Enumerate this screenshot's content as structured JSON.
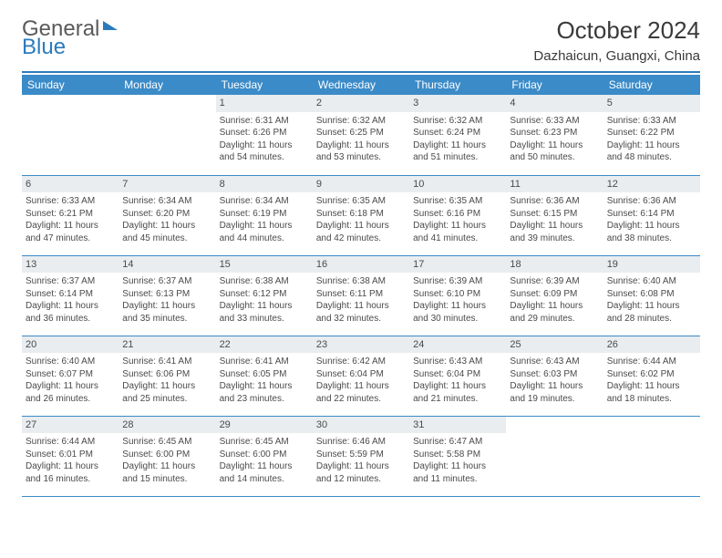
{
  "brand": {
    "part1": "General",
    "part2": "Blue"
  },
  "title": "October 2024",
  "location": "Dazhaicun, Guangxi, China",
  "dayHeaders": [
    "Sunday",
    "Monday",
    "Tuesday",
    "Wednesday",
    "Thursday",
    "Friday",
    "Saturday"
  ],
  "colors": {
    "headerBg": "#3b8bc8",
    "headerText": "#ffffff",
    "accent": "#2b7bbd",
    "dayNumBg": "#e9edf0",
    "bodyText": "#4a4a4a"
  },
  "firstDayOffset": 2,
  "days": [
    {
      "n": 1,
      "sr": "6:31 AM",
      "ss": "6:26 PM",
      "dl": "11 hours and 54 minutes."
    },
    {
      "n": 2,
      "sr": "6:32 AM",
      "ss": "6:25 PM",
      "dl": "11 hours and 53 minutes."
    },
    {
      "n": 3,
      "sr": "6:32 AM",
      "ss": "6:24 PM",
      "dl": "11 hours and 51 minutes."
    },
    {
      "n": 4,
      "sr": "6:33 AM",
      "ss": "6:23 PM",
      "dl": "11 hours and 50 minutes."
    },
    {
      "n": 5,
      "sr": "6:33 AM",
      "ss": "6:22 PM",
      "dl": "11 hours and 48 minutes."
    },
    {
      "n": 6,
      "sr": "6:33 AM",
      "ss": "6:21 PM",
      "dl": "11 hours and 47 minutes."
    },
    {
      "n": 7,
      "sr": "6:34 AM",
      "ss": "6:20 PM",
      "dl": "11 hours and 45 minutes."
    },
    {
      "n": 8,
      "sr": "6:34 AM",
      "ss": "6:19 PM",
      "dl": "11 hours and 44 minutes."
    },
    {
      "n": 9,
      "sr": "6:35 AM",
      "ss": "6:18 PM",
      "dl": "11 hours and 42 minutes."
    },
    {
      "n": 10,
      "sr": "6:35 AM",
      "ss": "6:16 PM",
      "dl": "11 hours and 41 minutes."
    },
    {
      "n": 11,
      "sr": "6:36 AM",
      "ss": "6:15 PM",
      "dl": "11 hours and 39 minutes."
    },
    {
      "n": 12,
      "sr": "6:36 AM",
      "ss": "6:14 PM",
      "dl": "11 hours and 38 minutes."
    },
    {
      "n": 13,
      "sr": "6:37 AM",
      "ss": "6:14 PM",
      "dl": "11 hours and 36 minutes."
    },
    {
      "n": 14,
      "sr": "6:37 AM",
      "ss": "6:13 PM",
      "dl": "11 hours and 35 minutes."
    },
    {
      "n": 15,
      "sr": "6:38 AM",
      "ss": "6:12 PM",
      "dl": "11 hours and 33 minutes."
    },
    {
      "n": 16,
      "sr": "6:38 AM",
      "ss": "6:11 PM",
      "dl": "11 hours and 32 minutes."
    },
    {
      "n": 17,
      "sr": "6:39 AM",
      "ss": "6:10 PM",
      "dl": "11 hours and 30 minutes."
    },
    {
      "n": 18,
      "sr": "6:39 AM",
      "ss": "6:09 PM",
      "dl": "11 hours and 29 minutes."
    },
    {
      "n": 19,
      "sr": "6:40 AM",
      "ss": "6:08 PM",
      "dl": "11 hours and 28 minutes."
    },
    {
      "n": 20,
      "sr": "6:40 AM",
      "ss": "6:07 PM",
      "dl": "11 hours and 26 minutes."
    },
    {
      "n": 21,
      "sr": "6:41 AM",
      "ss": "6:06 PM",
      "dl": "11 hours and 25 minutes."
    },
    {
      "n": 22,
      "sr": "6:41 AM",
      "ss": "6:05 PM",
      "dl": "11 hours and 23 minutes."
    },
    {
      "n": 23,
      "sr": "6:42 AM",
      "ss": "6:04 PM",
      "dl": "11 hours and 22 minutes."
    },
    {
      "n": 24,
      "sr": "6:43 AM",
      "ss": "6:04 PM",
      "dl": "11 hours and 21 minutes."
    },
    {
      "n": 25,
      "sr": "6:43 AM",
      "ss": "6:03 PM",
      "dl": "11 hours and 19 minutes."
    },
    {
      "n": 26,
      "sr": "6:44 AM",
      "ss": "6:02 PM",
      "dl": "11 hours and 18 minutes."
    },
    {
      "n": 27,
      "sr": "6:44 AM",
      "ss": "6:01 PM",
      "dl": "11 hours and 16 minutes."
    },
    {
      "n": 28,
      "sr": "6:45 AM",
      "ss": "6:00 PM",
      "dl": "11 hours and 15 minutes."
    },
    {
      "n": 29,
      "sr": "6:45 AM",
      "ss": "6:00 PM",
      "dl": "11 hours and 14 minutes."
    },
    {
      "n": 30,
      "sr": "6:46 AM",
      "ss": "5:59 PM",
      "dl": "11 hours and 12 minutes."
    },
    {
      "n": 31,
      "sr": "6:47 AM",
      "ss": "5:58 PM",
      "dl": "11 hours and 11 minutes."
    }
  ],
  "labels": {
    "sunrise": "Sunrise:",
    "sunset": "Sunset:",
    "daylight": "Daylight:"
  }
}
